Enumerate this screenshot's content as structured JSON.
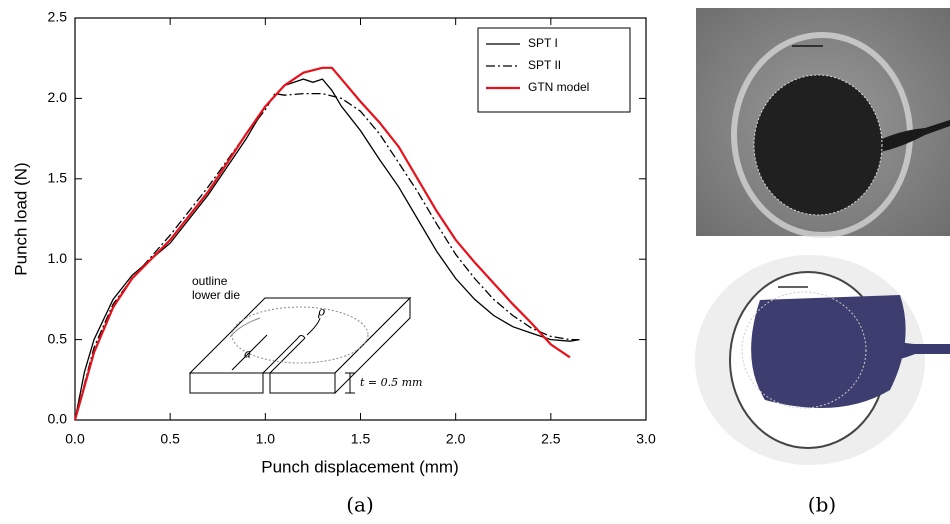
{
  "chart_data": {
    "type": "line",
    "xlabel": "Punch displacement (mm)",
    "ylabel": "Punch load (N)",
    "xlim": [
      0,
      3.0
    ],
    "ylim": [
      0,
      2.5
    ],
    "xticks": [
      {
        "value": 0,
        "label": "0.0"
      },
      0.5,
      {
        "value": 1,
        "label": "1.0"
      },
      1.5,
      {
        "value": 2,
        "label": "2.0"
      },
      2.5,
      {
        "value": 3,
        "label": "3.0"
      }
    ],
    "yticks": [
      {
        "value": 0,
        "label": "0.0"
      },
      0.5,
      {
        "value": 1,
        "label": "1.0"
      },
      1.5,
      {
        "value": 2,
        "label": "2.0"
      },
      2.5
    ],
    "legend": "upper right",
    "series": [
      {
        "name": "SPT I",
        "color": "#000000",
        "linestyle": "solid",
        "x": [
          0,
          0.05,
          0.1,
          0.2,
          0.3,
          0.5,
          0.7,
          0.9,
          1.0,
          1.1,
          1.2,
          1.25,
          1.3,
          1.35,
          1.4,
          1.5,
          1.6,
          1.7,
          1.8,
          1.9,
          2.0,
          2.1,
          2.2,
          2.3,
          2.4,
          2.5,
          2.6,
          2.65
        ],
        "values": [
          0,
          0.3,
          0.5,
          0.75,
          0.9,
          1.1,
          1.4,
          1.75,
          1.95,
          2.08,
          2.12,
          2.1,
          2.12,
          2.05,
          1.95,
          1.8,
          1.62,
          1.45,
          1.25,
          1.05,
          0.88,
          0.75,
          0.65,
          0.58,
          0.54,
          0.5,
          0.49,
          0.5
        ]
      },
      {
        "name": "SPT II",
        "color": "#000000",
        "linestyle": "dashed",
        "x": [
          0,
          0.1,
          0.2,
          0.3,
          0.5,
          0.7,
          0.9,
          1.0,
          1.05,
          1.1,
          1.2,
          1.3,
          1.4,
          1.5,
          1.6,
          1.7,
          1.8,
          1.9,
          2.0,
          2.1,
          2.2,
          2.3,
          2.4,
          2.5,
          2.6,
          2.65
        ],
        "values": [
          0,
          0.45,
          0.72,
          0.88,
          1.15,
          1.45,
          1.78,
          1.93,
          2.03,
          2.02,
          2.03,
          2.03,
          2.0,
          1.92,
          1.78,
          1.6,
          1.42,
          1.22,
          1.03,
          0.88,
          0.75,
          0.65,
          0.57,
          0.52,
          0.5,
          0.5
        ]
      },
      {
        "name": "GTN model",
        "color": "#e8101a",
        "linestyle": "solid",
        "x": [
          0,
          0.1,
          0.2,
          0.3,
          0.5,
          0.7,
          0.9,
          1.0,
          1.1,
          1.2,
          1.3,
          1.35,
          1.4,
          1.5,
          1.6,
          1.7,
          1.8,
          1.9,
          2.0,
          2.1,
          2.2,
          2.3,
          2.4,
          2.5,
          2.6
        ],
        "values": [
          0,
          0.42,
          0.7,
          0.88,
          1.12,
          1.42,
          1.78,
          1.95,
          2.08,
          2.16,
          2.19,
          2.19,
          2.12,
          1.98,
          1.85,
          1.7,
          1.5,
          1.3,
          1.12,
          0.98,
          0.85,
          0.72,
          0.6,
          0.47,
          0.39
        ]
      }
    ],
    "annotations": [
      "outline",
      "lower die",
      "a",
      "ρ",
      "t = 0.5 mm"
    ],
    "caption": "(a)"
  },
  "figure_b": {
    "caption": "(b)"
  }
}
